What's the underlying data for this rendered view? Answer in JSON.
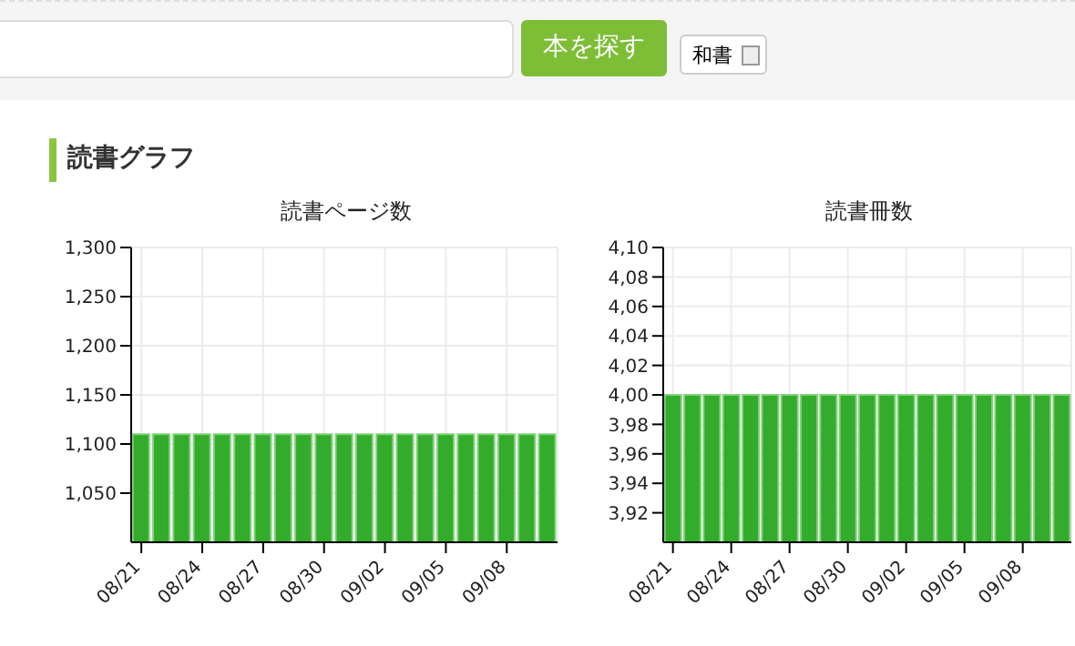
{
  "chart_data": [
    {
      "type": "bar",
      "title": "読書ページ数",
      "annotations": [
        "本を探す",
        "和書",
        "読書グラフ"
      ],
      "categories": [
        "08/21",
        null,
        null,
        "08/24",
        null,
        null,
        "08/27",
        null,
        null,
        "08/30",
        null,
        null,
        "09/02",
        null,
        null,
        "09/05",
        null,
        null,
        "09/08",
        null,
        null
      ],
      "values": [
        1110,
        1110,
        1110,
        1110,
        1110,
        1110,
        1110,
        1110,
        1110,
        1110,
        1110,
        1110,
        1110,
        1110,
        1110,
        1110,
        1110,
        1110,
        1110,
        1110,
        1110
      ],
      "color": "#33ab2b",
      "ylim": [
        1000,
        1300
      ],
      "yticks": [
        {
          "value": 1050,
          "label": "1,050"
        },
        {
          "value": 1100,
          "label": "1,100"
        },
        {
          "value": 1150,
          "label": "1,150"
        },
        {
          "value": 1200,
          "label": "1,200"
        },
        {
          "value": 1250,
          "label": "1,250"
        },
        {
          "value": 1300,
          "label": "1,300"
        }
      ],
      "grid": true
    },
    {
      "type": "bar",
      "title": "読書冊数",
      "categories": [
        "08/21",
        null,
        null,
        "08/24",
        null,
        null,
        "08/27",
        null,
        null,
        "08/30",
        null,
        null,
        "09/02",
        null,
        null,
        "09/05",
        null,
        null,
        "09/08",
        null,
        null
      ],
      "values": [
        4,
        4,
        4,
        4,
        4,
        4,
        4,
        4,
        4,
        4,
        4,
        4,
        4,
        4,
        4,
        4,
        4,
        4,
        4,
        4,
        4
      ],
      "color": "#33ab2b",
      "ylim": [
        3.9,
        4.1
      ],
      "yticks": [
        {
          "value": 3.92,
          "label": "3,92"
        },
        {
          "value": 3.94,
          "label": "3,94"
        },
        {
          "value": 3.96,
          "label": "3,96"
        },
        {
          "value": 3.98,
          "label": "3,98"
        },
        {
          "value": 4.0,
          "label": "4,00"
        },
        {
          "value": 4.02,
          "label": "4,02"
        },
        {
          "value": 4.04,
          "label": "4,04"
        },
        {
          "value": 4.06,
          "label": "4,06"
        },
        {
          "value": 4.08,
          "label": "4,08"
        },
        {
          "value": 4.1,
          "label": "4,10"
        }
      ],
      "grid": true
    }
  ]
}
